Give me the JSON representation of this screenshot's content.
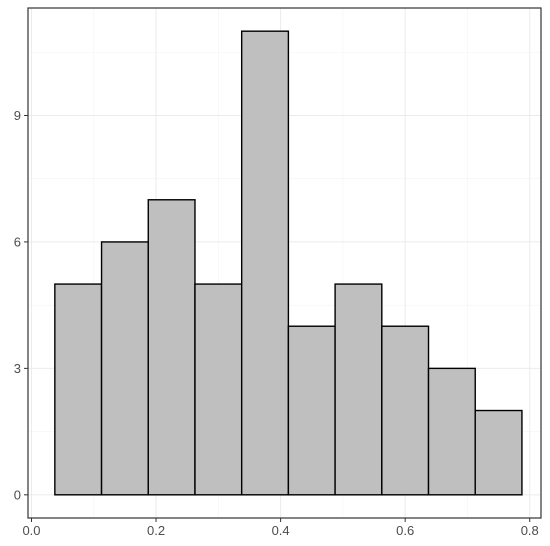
{
  "chart_data": {
    "type": "bar",
    "subtype": "histogram",
    "bins": [
      {
        "start": 0.0375,
        "end": 0.1125,
        "count": 5
      },
      {
        "start": 0.1125,
        "end": 0.1875,
        "count": 6
      },
      {
        "start": 0.1875,
        "end": 0.2625,
        "count": 7
      },
      {
        "start": 0.2625,
        "end": 0.3375,
        "count": 5
      },
      {
        "start": 0.3375,
        "end": 0.4125,
        "count": 11
      },
      {
        "start": 0.4125,
        "end": 0.4875,
        "count": 4
      },
      {
        "start": 0.4875,
        "end": 0.5625,
        "count": 5
      },
      {
        "start": 0.5625,
        "end": 0.6375,
        "count": 4
      },
      {
        "start": 0.6375,
        "end": 0.7125,
        "count": 3
      },
      {
        "start": 0.7125,
        "end": 0.7875,
        "count": 2
      }
    ],
    "xlim": [
      -0.0056,
      0.8181
    ],
    "ylim": [
      -0.55,
      11.55
    ],
    "x_ticks": [
      {
        "value": 0.0,
        "label": "0.0"
      },
      {
        "value": 0.2,
        "label": "0.2"
      },
      {
        "value": 0.4,
        "label": "0.4"
      },
      {
        "value": 0.6,
        "label": "0.6"
      },
      {
        "value": 0.8,
        "label": "0.8"
      }
    ],
    "y_ticks": [
      {
        "value": 0,
        "label": "0"
      },
      {
        "value": 3,
        "label": "3"
      },
      {
        "value": 6,
        "label": "6"
      },
      {
        "value": 9,
        "label": "9"
      }
    ],
    "x_minor": [
      0.1,
      0.3,
      0.5,
      0.7
    ],
    "y_minor": [
      1.5,
      4.5,
      7.5,
      10.5
    ],
    "title": "",
    "xlabel": "",
    "ylabel": "",
    "grid": true,
    "bar_fill": "#bfbfbf",
    "bar_stroke": "#000000"
  }
}
